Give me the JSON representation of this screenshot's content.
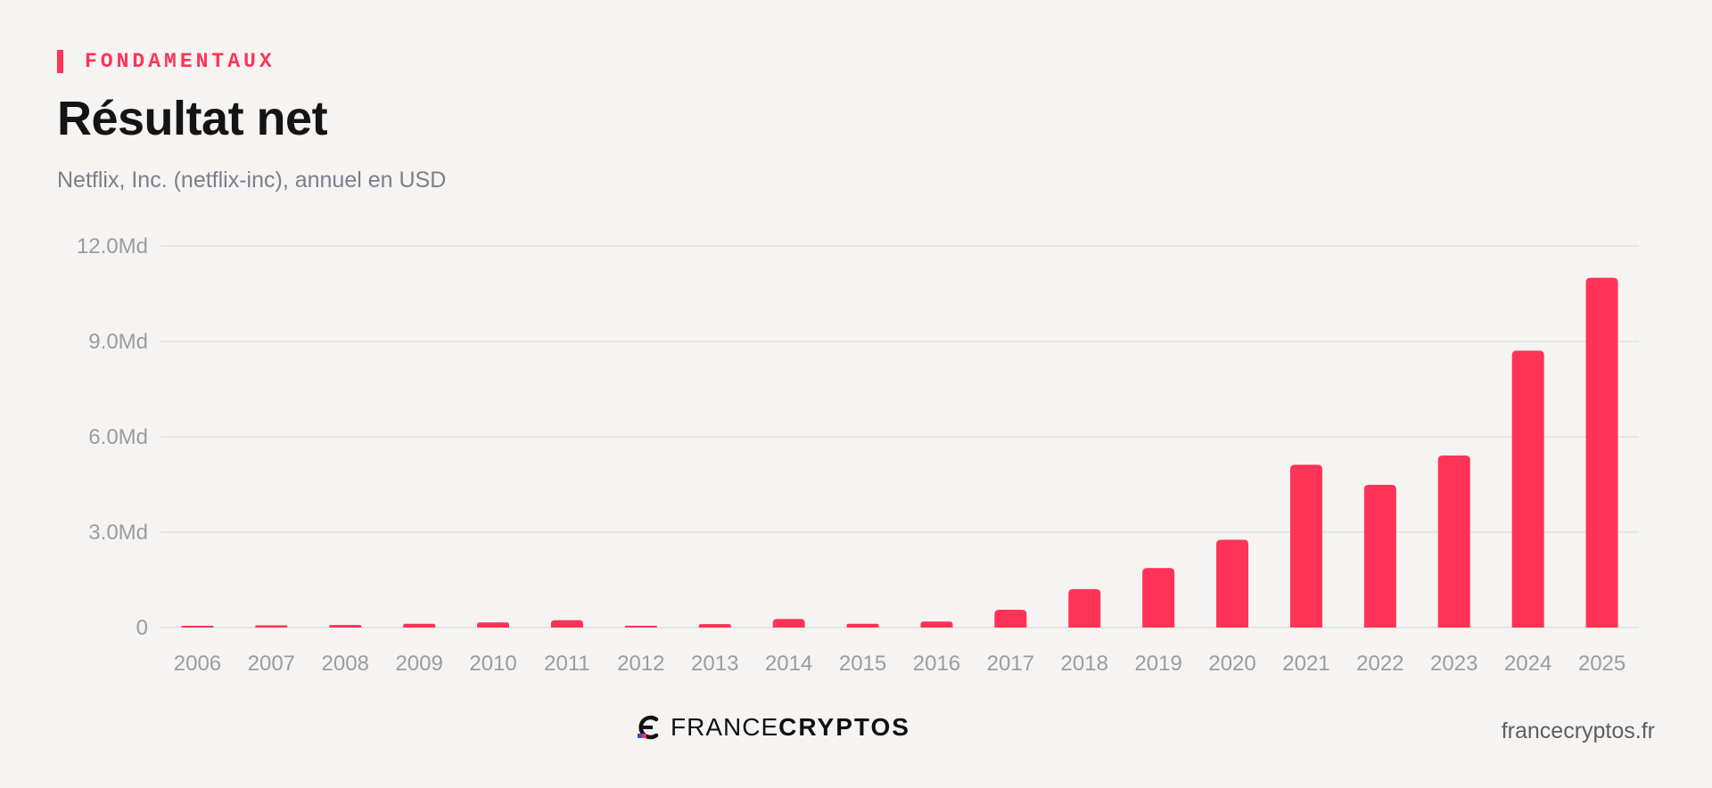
{
  "header": {
    "kicker": "FONDAMENTAUX",
    "title": "Résultat net",
    "subtitle": "Netflix, Inc. (netflix-inc), annuel en USD"
  },
  "footer": {
    "brand_light": "FRANCE",
    "brand_bold": "CRYPTOS",
    "site": "francecryptos.fr",
    "logo_icon": "france-cryptos-logo-icon"
  },
  "colors": {
    "accent": "#ff3358",
    "bar": "#ff3358",
    "grid": "#dcdcdc",
    "axis_text": "#9a9ca5"
  },
  "chart_data": {
    "type": "bar",
    "title": "Résultat net",
    "subtitle": "Netflix, Inc. (netflix-inc), annuel en USD",
    "categories": [
      "2006",
      "2007",
      "2008",
      "2009",
      "2010",
      "2011",
      "2012",
      "2013",
      "2014",
      "2015",
      "2016",
      "2017",
      "2018",
      "2019",
      "2020",
      "2021",
      "2022",
      "2023",
      "2024",
      "2025"
    ],
    "values": [
      0.05,
      0.07,
      0.08,
      0.12,
      0.16,
      0.23,
      0.02,
      0.11,
      0.27,
      0.12,
      0.19,
      0.56,
      1.21,
      1.87,
      2.76,
      5.12,
      4.49,
      5.41,
      8.71,
      11.0
    ],
    "unit": "Md USD",
    "ylim": [
      0,
      12
    ],
    "yticks": [
      0,
      3,
      6,
      9,
      12
    ],
    "ytick_labels": [
      "0",
      "3.0Md",
      "6.0Md",
      "9.0Md",
      "12.0Md"
    ],
    "grid": true
  }
}
